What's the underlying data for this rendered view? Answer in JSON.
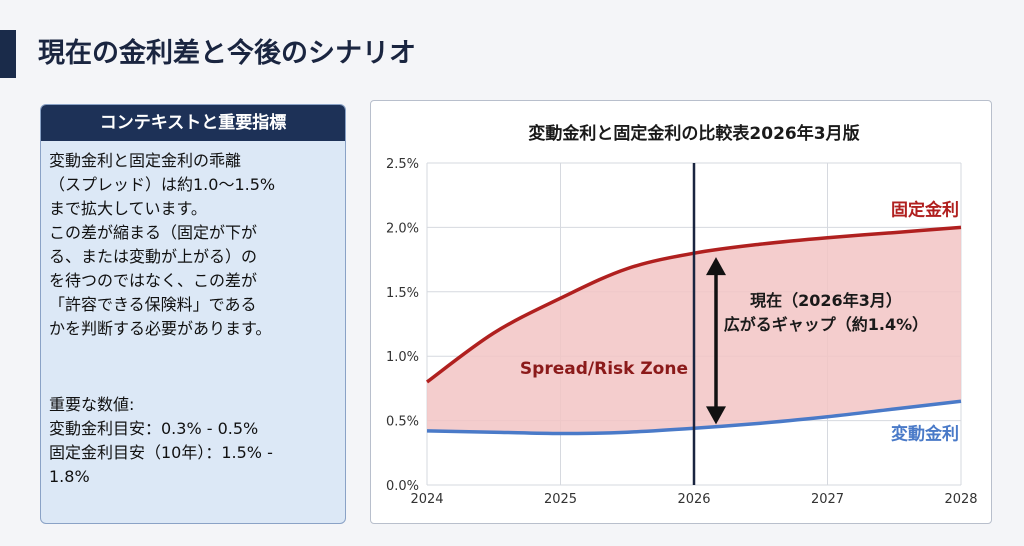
{
  "page": {
    "title": "現在の金利差と今後のシナリオ"
  },
  "context": {
    "header": "コンテキストと重要指標",
    "paragraph1": [
      "変動金利と固定金利の乖離",
      "（スプレッド）は約1.0〜1.5%",
      "まで拡大しています。"
    ],
    "paragraph2": [
      "この差が縮まる（固定が下が",
      "る、または変動が上がる）の",
      "を待つのではなく、この差が",
      "「許容できる保険料」である",
      "かを判断する必要があります。"
    ],
    "figures_title": "重要な数値:",
    "figures": [
      "変動金利目安：0.3% - 0.5%",
      "固定金利目安（10年）：1.5% -",
      "1.8%"
    ]
  },
  "colors": {
    "fixed": "#b0201f",
    "variable": "#4a7ac8",
    "zone": "#f2c4c4",
    "marker": "#1a2540"
  },
  "chart_data": {
    "type": "area",
    "title": "変動金利と固定金利の比較表2026年3月版",
    "x": [
      2024,
      2024.5,
      2025,
      2025.5,
      2026,
      2026.5,
      2027,
      2027.5,
      2028
    ],
    "x_ticks": [
      "2024",
      "2025",
      "2026",
      "2027",
      "2028"
    ],
    "y_ticks": [
      "0.0%",
      "0.5%",
      "1.0%",
      "1.5%",
      "2.0%",
      "2.5%"
    ],
    "ylim": [
      0,
      2.5
    ],
    "xlim": [
      2024,
      2028
    ],
    "grid": true,
    "series": [
      {
        "name": "固定金利",
        "values": [
          0.8,
          1.18,
          1.45,
          1.68,
          1.8,
          1.87,
          1.92,
          1.96,
          2.0
        ]
      },
      {
        "name": "変動金利",
        "values": [
          0.42,
          0.41,
          0.4,
          0.41,
          0.44,
          0.48,
          0.53,
          0.59,
          0.65
        ]
      }
    ],
    "marker_x": 2026,
    "annotations": {
      "zone_label": "Spread/Risk Zone",
      "current_line1": "現在（2026年3月）",
      "current_line2": "広がるギャップ（約1.4%）"
    }
  }
}
